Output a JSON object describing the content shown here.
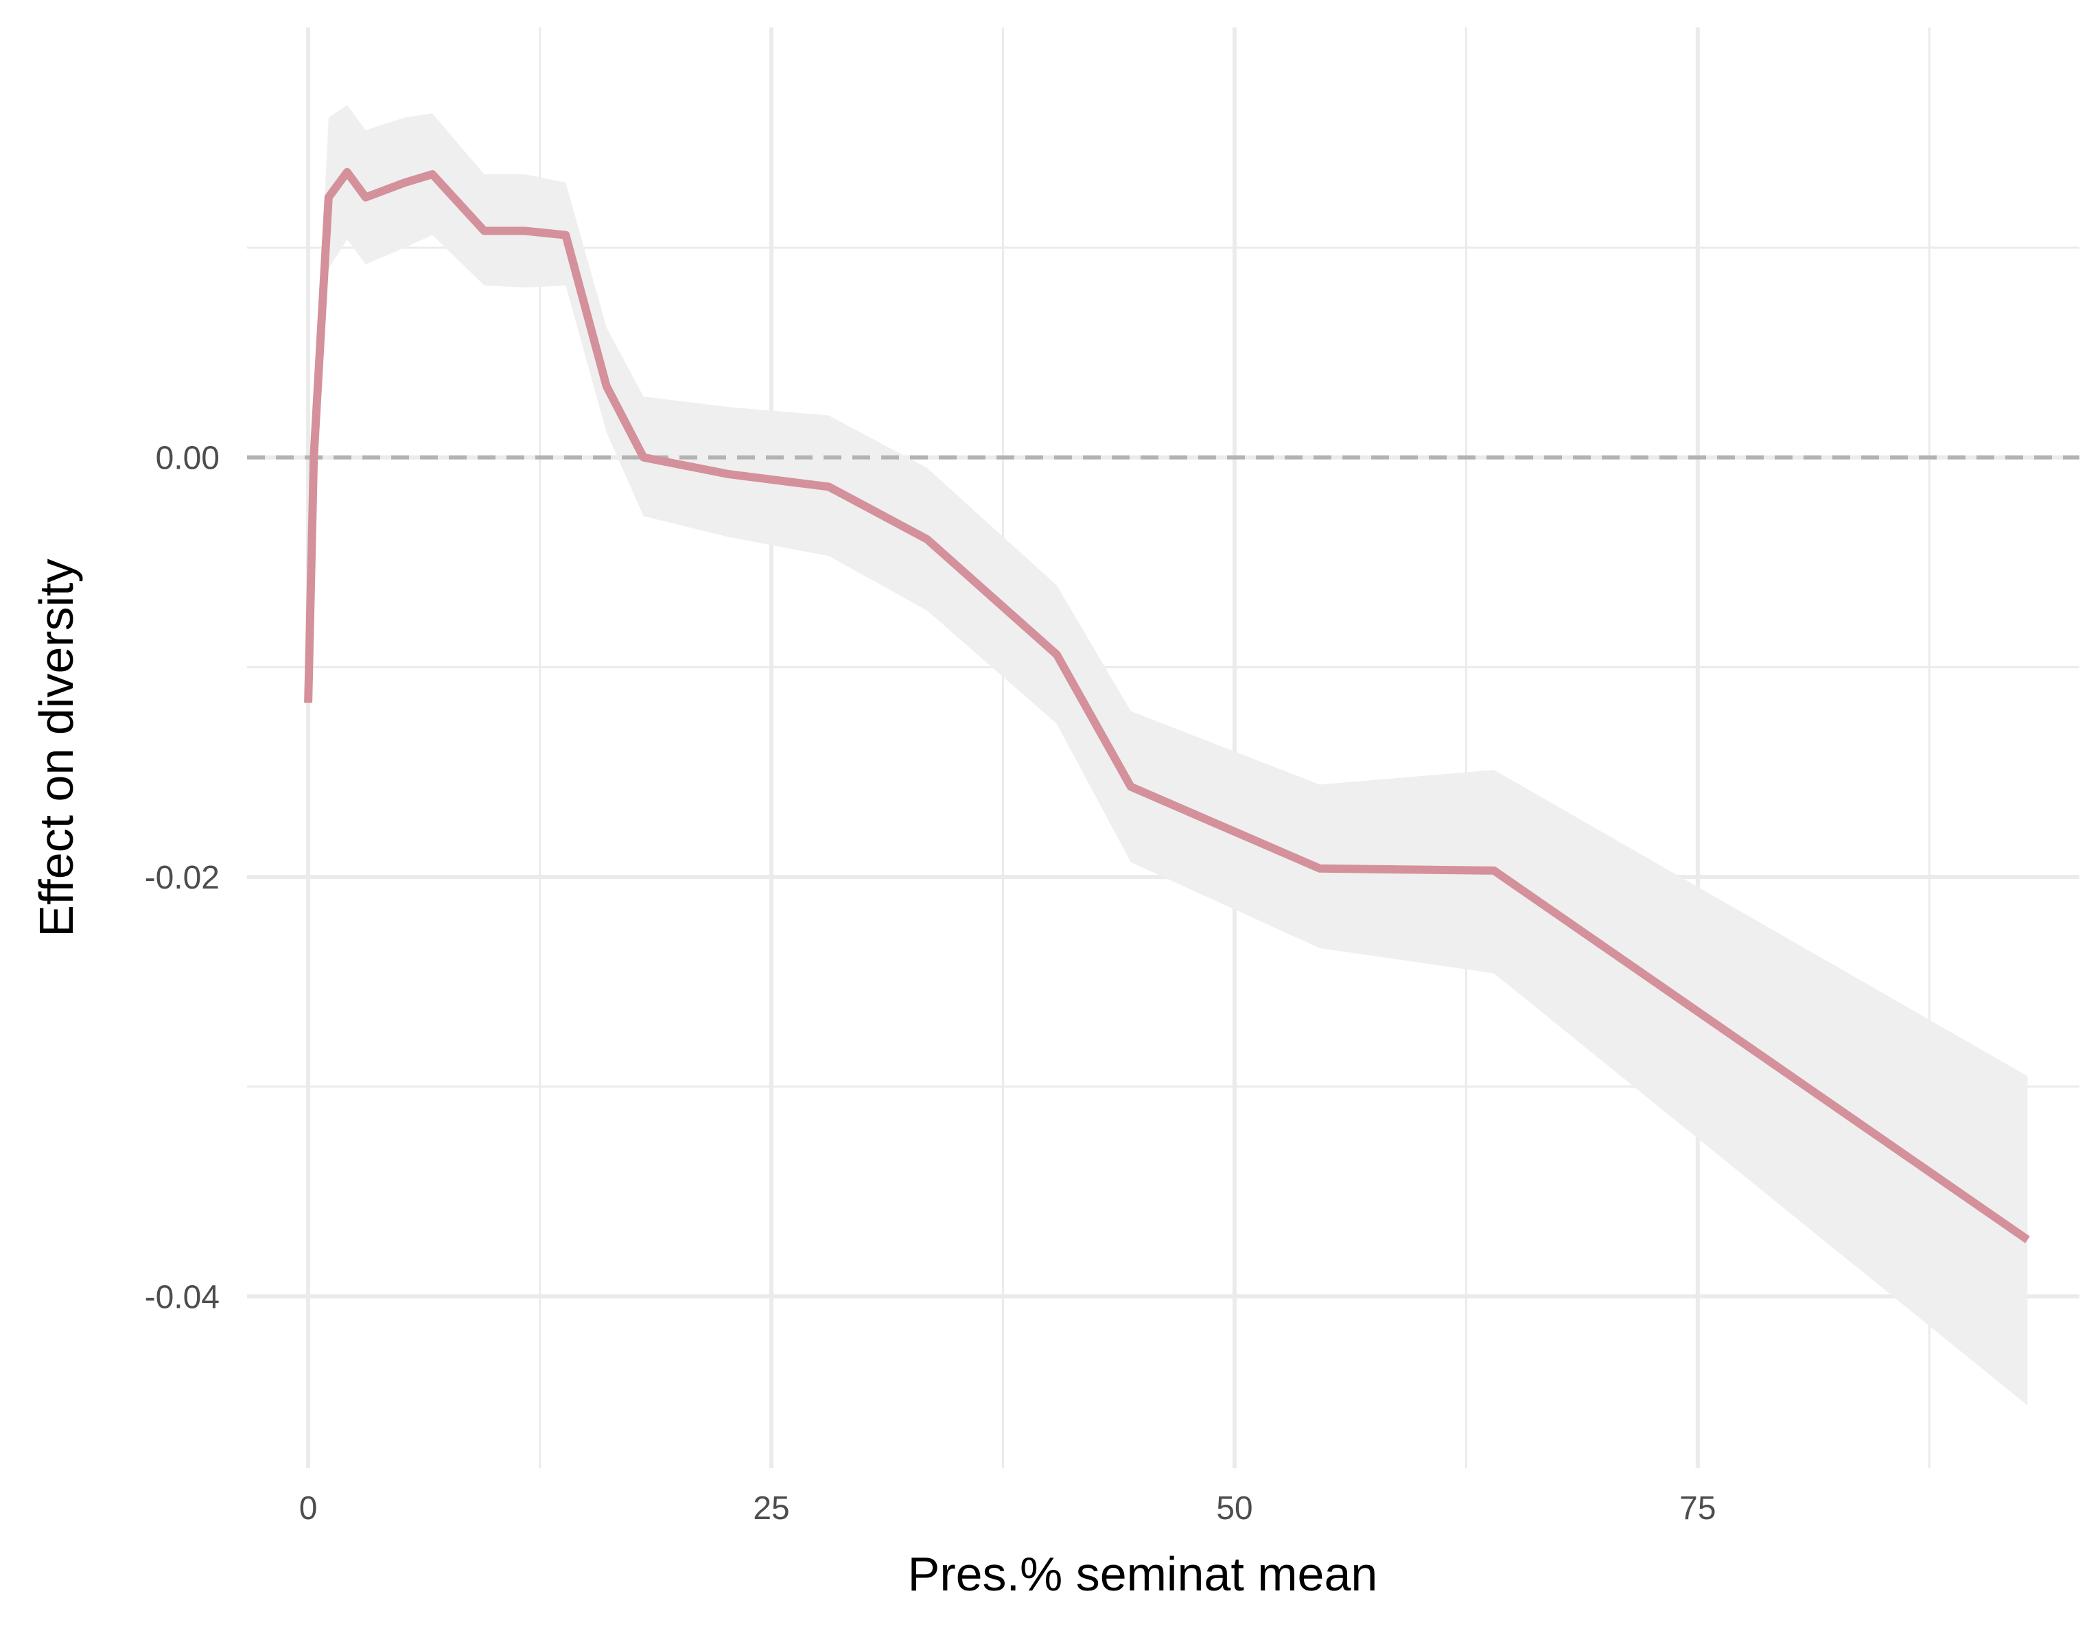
{
  "chart_data": {
    "type": "line",
    "title": "",
    "xlabel": "Pres.% seminat mean",
    "ylabel": "Effect on diversity",
    "xlim": [
      -3.3,
      95.6
    ],
    "ylim": [
      -0.0482,
      0.0205
    ],
    "x_ticks": [
      0,
      25,
      50,
      75
    ],
    "x_tick_labels": [
      "0",
      "25",
      "50",
      "75"
    ],
    "x_minor_ticks": [
      12.5,
      37.5,
      62.5,
      87.5
    ],
    "y_ticks": [
      0.0,
      -0.02,
      -0.04
    ],
    "y_tick_labels": [
      "0.00",
      "-0.02",
      "-0.04"
    ],
    "y_minor_ticks": [
      0.01,
      -0.01,
      -0.03
    ],
    "grid": true,
    "reference_line": {
      "y": 0,
      "style": "dashed",
      "color": "#b3b3b3"
    },
    "series": [
      {
        "color": "#d4909b",
        "ribbon_color": "#efefef",
        "points": [
          {
            "x": 0.0,
            "y": -0.0117,
            "lower": -0.0117,
            "upper": -0.0117
          },
          {
            "x": 0.3,
            "y": 0.0,
            "lower": -0.002,
            "upper": 0.002
          },
          {
            "x": 1.1,
            "y": 0.0124,
            "lower": 0.009,
            "upper": 0.0162
          },
          {
            "x": 2.1,
            "y": 0.0136,
            "lower": 0.0104,
            "upper": 0.0168
          },
          {
            "x": 3.1,
            "y": 0.0124,
            "lower": 0.0092,
            "upper": 0.0156
          },
          {
            "x": 5.2,
            "y": 0.0131,
            "lower": 0.01,
            "upper": 0.0162
          },
          {
            "x": 6.7,
            "y": 0.0135,
            "lower": 0.0106,
            "upper": 0.0164
          },
          {
            "x": 9.5,
            "y": 0.0108,
            "lower": 0.0082,
            "upper": 0.0135
          },
          {
            "x": 11.7,
            "y": 0.0108,
            "lower": 0.0081,
            "upper": 0.0135
          },
          {
            "x": 13.9,
            "y": 0.0106,
            "lower": 0.0082,
            "upper": 0.0131
          },
          {
            "x": 16.1,
            "y": 0.0034,
            "lower": 0.0012,
            "upper": 0.0062
          },
          {
            "x": 18.1,
            "y": 0.0,
            "lower": -0.0028,
            "upper": 0.0029
          },
          {
            "x": 22.7,
            "y": -0.0008,
            "lower": -0.0038,
            "upper": 0.0024
          },
          {
            "x": 28.1,
            "y": -0.0014,
            "lower": -0.0047,
            "upper": 0.002
          },
          {
            "x": 33.4,
            "y": -0.0039,
            "lower": -0.0073,
            "upper": -0.0005
          },
          {
            "x": 40.4,
            "y": -0.0094,
            "lower": -0.0127,
            "upper": -0.0061
          },
          {
            "x": 44.4,
            "y": -0.0157,
            "lower": -0.0193,
            "upper": -0.0121
          },
          {
            "x": 54.6,
            "y": -0.0196,
            "lower": -0.0234,
            "upper": -0.0156
          },
          {
            "x": 64.0,
            "y": -0.0197,
            "lower": -0.0246,
            "upper": -0.0149
          },
          {
            "x": 92.8,
            "y": -0.0373,
            "lower": -0.0452,
            "upper": -0.0295
          }
        ]
      }
    ]
  }
}
